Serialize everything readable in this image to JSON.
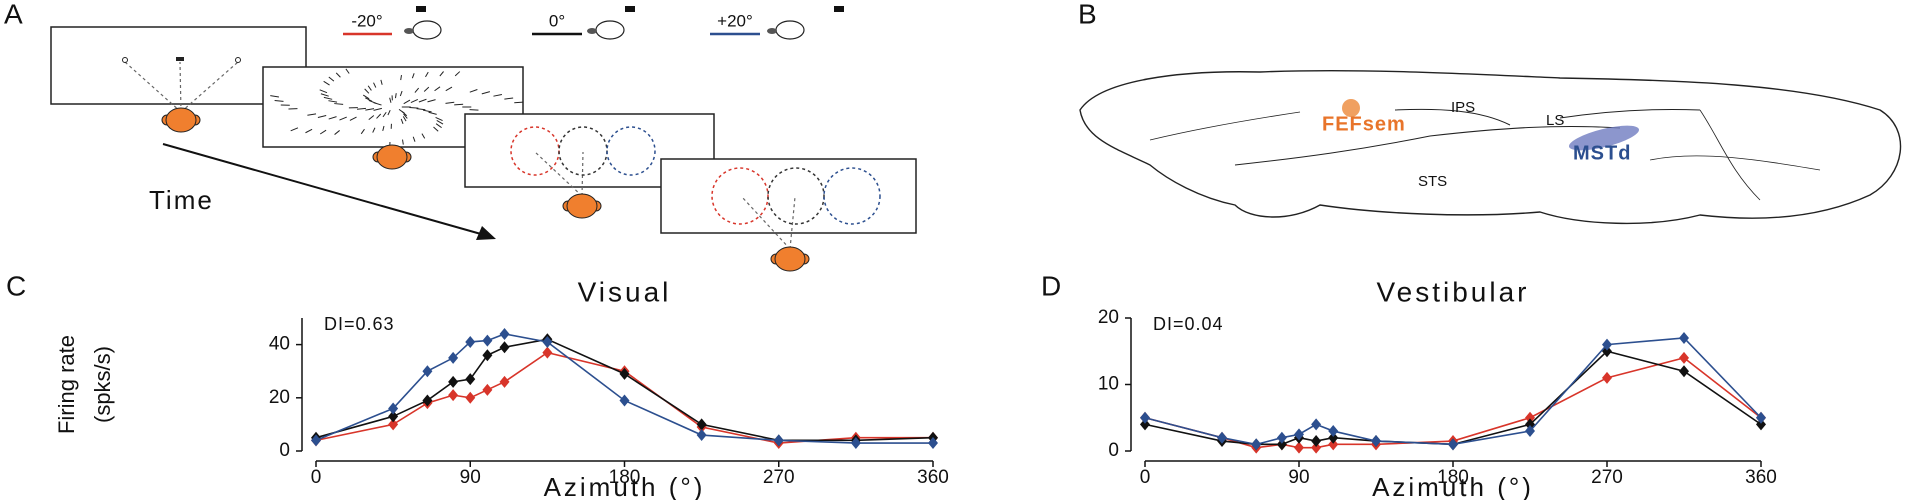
{
  "panels": {
    "a": {
      "label": "A",
      "conditions": [
        "-20°",
        "0°",
        "+20°"
      ],
      "time": "Time"
    },
    "b": {
      "label": "B",
      "areas": [
        "IPS",
        "FEFsem",
        "LS",
        "MSTd",
        "STS"
      ]
    },
    "c": {
      "label": "C"
    },
    "d": {
      "label": "D"
    }
  },
  "chart_data": [
    {
      "type": "line",
      "title": "Visual",
      "annotation": "DI=0.63",
      "xlabel": "Azimuth (°)",
      "ylabel": [
        "Firing rate",
        "(spks/s)"
      ],
      "x": [
        0,
        45,
        65,
        80,
        90,
        100,
        110,
        135,
        180,
        225,
        270,
        315,
        360
      ],
      "xlim": [
        0,
        360
      ],
      "xticks": [
        0,
        90,
        180,
        270,
        360
      ],
      "ylim": [
        0,
        50
      ],
      "yticks": [
        0,
        20,
        40
      ],
      "series": [
        {
          "name": "-20°",
          "color": "#d8352a",
          "values": [
            4,
            10,
            18,
            21,
            20,
            23,
            26,
            37,
            30,
            9,
            3,
            5,
            5
          ]
        },
        {
          "name": "0°",
          "color": "#111111",
          "values": [
            5,
            13,
            19,
            26,
            27,
            36,
            39,
            42,
            29,
            10,
            4,
            4,
            5
          ]
        },
        {
          "name": "+20°",
          "color": "#2c4f8f",
          "values": [
            4,
            16,
            30,
            35,
            41,
            41.5,
            44,
            41,
            19,
            6,
            4,
            3,
            3
          ]
        }
      ]
    },
    {
      "type": "line",
      "title": "Vestibular",
      "annotation": "DI=0.04",
      "xlabel": "Azimuth (°)",
      "x": [
        0,
        45,
        65,
        80,
        90,
        100,
        110,
        135,
        180,
        225,
        270,
        315,
        360
      ],
      "xlim": [
        0,
        360
      ],
      "xticks": [
        0,
        90,
        180,
        270,
        360
      ],
      "ylim": [
        0,
        20
      ],
      "yticks": [
        0,
        10,
        20
      ],
      "series": [
        {
          "color": "#d8352a",
          "values": [
            5,
            2,
            0.5,
            1,
            0.5,
            0.5,
            1,
            1,
            1.5,
            5,
            11,
            14,
            5
          ]
        },
        {
          "color": "#111111",
          "values": [
            4,
            1.5,
            1,
            1,
            2,
            1.5,
            2,
            1.5,
            1,
            4,
            15,
            12,
            4
          ]
        },
        {
          "color": "#2c4f8f",
          "values": [
            5,
            2,
            1,
            2,
            2.5,
            4,
            3,
            1.5,
            1,
            3,
            16,
            17,
            5
          ]
        }
      ]
    }
  ]
}
